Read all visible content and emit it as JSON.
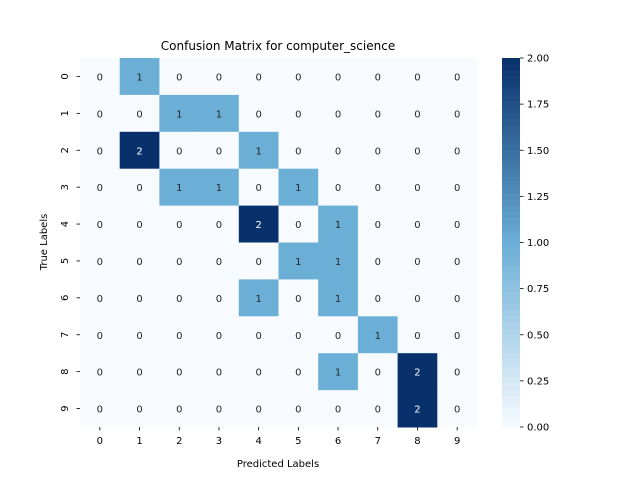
{
  "chart_data": {
    "type": "heatmap",
    "title": "Confusion Matrix for computer_science",
    "xlabel": "Predicted Labels",
    "ylabel": "True Labels",
    "x_categories": [
      "0",
      "1",
      "2",
      "3",
      "4",
      "5",
      "6",
      "7",
      "8",
      "9"
    ],
    "y_categories": [
      "0",
      "1",
      "2",
      "3",
      "4",
      "5",
      "6",
      "7",
      "8",
      "9"
    ],
    "values": [
      [
        0,
        1,
        0,
        0,
        0,
        0,
        0,
        0,
        0,
        0
      ],
      [
        0,
        0,
        1,
        1,
        0,
        0,
        0,
        0,
        0,
        0
      ],
      [
        0,
        2,
        0,
        0,
        1,
        0,
        0,
        0,
        0,
        0
      ],
      [
        0,
        0,
        1,
        1,
        0,
        1,
        0,
        0,
        0,
        0
      ],
      [
        0,
        0,
        0,
        0,
        2,
        0,
        1,
        0,
        0,
        0
      ],
      [
        0,
        0,
        0,
        0,
        0,
        1,
        1,
        0,
        0,
        0
      ],
      [
        0,
        0,
        0,
        0,
        1,
        0,
        1,
        0,
        0,
        0
      ],
      [
        0,
        0,
        0,
        0,
        0,
        0,
        0,
        1,
        0,
        0
      ],
      [
        0,
        0,
        0,
        0,
        0,
        0,
        1,
        0,
        2,
        0
      ],
      [
        0,
        0,
        0,
        0,
        0,
        0,
        0,
        0,
        2,
        0
      ]
    ],
    "colorbar": {
      "min": 0,
      "max": 2,
      "ticks": [
        "0.00",
        "0.25",
        "0.50",
        "0.75",
        "1.00",
        "1.25",
        "1.50",
        "1.75",
        "2.00"
      ],
      "colormap": "Blues"
    },
    "colors": {
      "low": "#f7fbff",
      "mid": "#6baed6",
      "high": "#08306b",
      "text_dark": "#262626",
      "text_light": "#ffffff"
    }
  }
}
